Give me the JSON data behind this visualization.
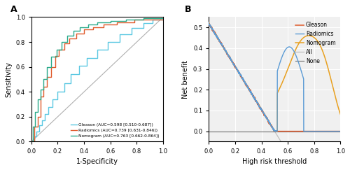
{
  "panel_A": {
    "xlabel": "1-Specificity",
    "ylabel": "Sensitivity",
    "diagonal_color": "#b0b0b0",
    "gleason_color": "#5bc8e2",
    "radiomics_color": "#e05a2b",
    "nomogram_color": "#2aaa8a",
    "legend": [
      "Gleason (AUC=0.598 [0.510-0.687])",
      "Radiomics (AUC=0.739 [0.631-0.846])",
      "Nomogram (AUC=0.763 [0.662-0.864])"
    ]
  },
  "panel_B": {
    "xlabel": "High risk threshold",
    "ylabel": "Net benefit",
    "gleason_color": "#e05a2b",
    "radiomics_color": "#5b9bd5",
    "nomogram_color": "#e8a020",
    "all_color": "#c0c0c0",
    "none_color": "#808080",
    "legend": [
      "Gleason",
      "Radiomics",
      "Nomogram",
      "All",
      "None"
    ],
    "bg_color": "#f0f0f0"
  }
}
